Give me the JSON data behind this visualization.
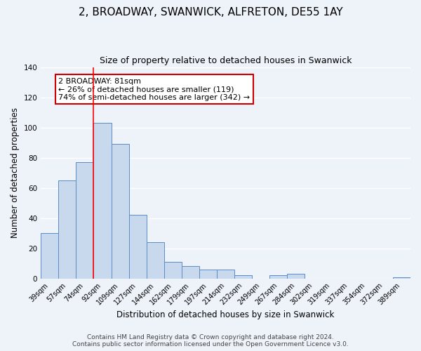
{
  "title": "2, BROADWAY, SWANWICK, ALFRETON, DE55 1AY",
  "subtitle": "Size of property relative to detached houses in Swanwick",
  "xlabel": "Distribution of detached houses by size in Swanwick",
  "ylabel": "Number of detached properties",
  "bar_labels": [
    "39sqm",
    "57sqm",
    "74sqm",
    "92sqm",
    "109sqm",
    "127sqm",
    "144sqm",
    "162sqm",
    "179sqm",
    "197sqm",
    "214sqm",
    "232sqm",
    "249sqm",
    "267sqm",
    "284sqm",
    "302sqm",
    "319sqm",
    "337sqm",
    "354sqm",
    "372sqm",
    "389sqm"
  ],
  "bar_values": [
    30,
    65,
    77,
    103,
    89,
    42,
    24,
    11,
    8,
    6,
    6,
    2,
    0,
    2,
    3,
    0,
    0,
    0,
    0,
    0,
    1
  ],
  "bar_color": "#c9d9ed",
  "bar_edge_color": "#5b8cc8",
  "red_line_x": 2.5,
  "ylim": [
    0,
    140
  ],
  "annotation_text": "2 BROADWAY: 81sqm\n← 26% of detached houses are smaller (119)\n74% of semi-detached houses are larger (342) →",
  "annotation_box_color": "#ffffff",
  "annotation_box_edge": "#cc0000",
  "footer_line1": "Contains HM Land Registry data © Crown copyright and database right 2024.",
  "footer_line2": "Contains public sector information licensed under the Open Government Licence v3.0.",
  "background_color": "#eef2f9",
  "grid_color": "#ffffff",
  "title_fontsize": 11,
  "subtitle_fontsize": 9,
  "tick_fontsize": 7,
  "ylabel_fontsize": 8.5,
  "xlabel_fontsize": 8.5,
  "footer_fontsize": 6.5
}
